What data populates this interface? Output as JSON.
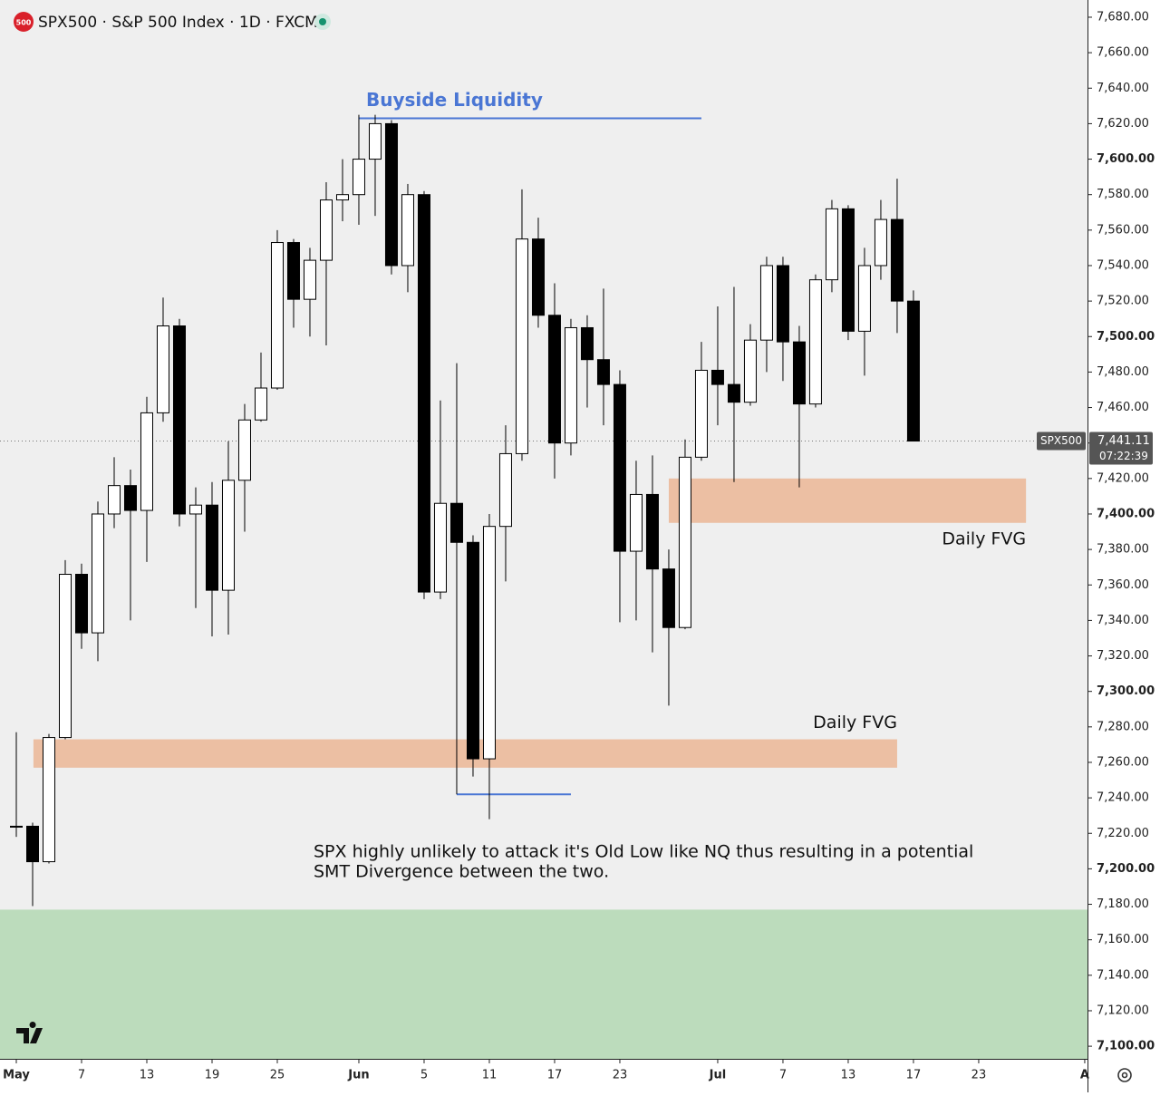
{
  "chart_data": {
    "type": "candlestick",
    "title": "SPX500 · S&P 500 Index · 1D · FXCM",
    "badge": "500",
    "x": [
      0,
      1,
      2,
      3,
      4,
      5,
      6,
      7,
      8,
      9,
      10,
      11,
      12,
      13,
      14,
      15,
      16,
      17,
      18,
      19,
      20,
      21,
      22,
      23,
      24,
      25,
      26,
      27,
      28,
      29,
      30,
      31,
      32,
      33,
      34,
      35,
      36,
      37,
      38,
      39,
      40,
      41,
      42,
      43,
      44,
      45,
      46,
      47,
      48,
      49,
      50,
      51,
      52,
      53,
      54,
      55
    ],
    "open": [
      7224,
      7224,
      7204,
      7274,
      7366,
      7333,
      7400,
      7416,
      7402,
      7457,
      7506,
      7400,
      7405,
      7357,
      7419,
      7453,
      7471,
      7553,
      7521,
      7543,
      7577,
      7580,
      7600,
      7620,
      7540,
      7580,
      7356,
      7406,
      7384,
      7262,
      7393,
      7434,
      7555,
      7512,
      7440,
      7505,
      7487,
      7473,
      7379,
      7411,
      7369,
      7336,
      7432,
      7481,
      7473,
      7463,
      7498,
      7540,
      7497,
      7462,
      7532,
      7572,
      7503,
      7540,
      7566,
      7520
    ],
    "high": [
      7277,
      7226,
      7276,
      7374,
      7372,
      7407,
      7432,
      7425,
      7466,
      7522,
      7510,
      7415,
      7418,
      7441,
      7462,
      7491,
      7560,
      7555,
      7550,
      7587,
      7600,
      7625,
      7625,
      7622,
      7586,
      7582,
      7464,
      7485,
      7388,
      7400,
      7450,
      7583,
      7567,
      7530,
      7510,
      7512,
      7527,
      7481,
      7430,
      7433,
      7380,
      7442,
      7497,
      7517,
      7528,
      7507,
      7545,
      7545,
      7506,
      7535,
      7577,
      7574,
      7550,
      7577,
      7589,
      7526
    ],
    "low": [
      7218,
      7179,
      7203,
      7273,
      7324,
      7317,
      7392,
      7340,
      7373,
      7452,
      7393,
      7347,
      7331,
      7332,
      7390,
      7452,
      7470,
      7505,
      7500,
      7495,
      7565,
      7563,
      7568,
      7535,
      7525,
      7352,
      7352,
      7242,
      7252,
      7228,
      7362,
      7430,
      7505,
      7420,
      7433,
      7460,
      7450,
      7339,
      7340,
      7322,
      7292,
      7335,
      7430,
      7450,
      7418,
      7461,
      7480,
      7475,
      7415,
      7460,
      7525,
      7498,
      7478,
      7532,
      7502,
      7441
    ],
    "close": [
      7224,
      7204,
      7274,
      7366,
      7333,
      7400,
      7416,
      7402,
      7457,
      7506,
      7400,
      7405,
      7357,
      7419,
      7453,
      7471,
      7553,
      7521,
      7543,
      7577,
      7580,
      7600,
      7620,
      7540,
      7580,
      7356,
      7406,
      7384,
      7262,
      7393,
      7434,
      7555,
      7512,
      7440,
      7505,
      7487,
      7473,
      7379,
      7411,
      7369,
      7336,
      7432,
      7481,
      7473,
      7463,
      7498,
      7540,
      7497,
      7462,
      7532,
      7572,
      7503,
      7540,
      7566,
      7520,
      7441.11
    ],
    "up_color": "#ffffff",
    "down_color": "#000000",
    "xlim": [
      -1,
      65.67
    ],
    "xticks": [
      {
        "value": 0,
        "label": "May"
      },
      {
        "value": 4,
        "label": "7"
      },
      {
        "value": 8,
        "label": "13"
      },
      {
        "value": 12,
        "label": "19"
      },
      {
        "value": 16,
        "label": "25"
      },
      {
        "value": 21,
        "label": "Jun"
      },
      {
        "value": 25,
        "label": "5"
      },
      {
        "value": 29,
        "label": "11"
      },
      {
        "value": 33,
        "label": "17"
      },
      {
        "value": 37,
        "label": "23"
      },
      {
        "value": 43,
        "label": "Jul"
      },
      {
        "value": 47,
        "label": "7"
      },
      {
        "value": 51,
        "label": "13"
      },
      {
        "value": 55,
        "label": "17"
      },
      {
        "value": 59,
        "label": "23"
      },
      {
        "value": 65.5,
        "label": "A"
      }
    ],
    "ylim": [
      7092.9,
      7689.7
    ],
    "yticks": [
      {
        "value": 7100,
        "label": "7,100.00"
      },
      {
        "value": 7120,
        "label": "7,120.00"
      },
      {
        "value": 7140,
        "label": "7,140.00"
      },
      {
        "value": 7160,
        "label": "7,160.00"
      },
      {
        "value": 7180,
        "label": "7,180.00"
      },
      {
        "value": 7200,
        "label": "7,200.00"
      },
      {
        "value": 7220,
        "label": "7,220.00"
      },
      {
        "value": 7240,
        "label": "7,240.00"
      },
      {
        "value": 7260,
        "label": "7,260.00"
      },
      {
        "value": 7280,
        "label": "7,280.00"
      },
      {
        "value": 7300,
        "label": "7,300.00"
      },
      {
        "value": 7320,
        "label": "7,320.00"
      },
      {
        "value": 7340,
        "label": "7,340.00"
      },
      {
        "value": 7360,
        "label": "7,360.00"
      },
      {
        "value": 7380,
        "label": "7,380.00"
      },
      {
        "value": 7400,
        "label": "7,400.00"
      },
      {
        "value": 7420,
        "label": "7,420.00"
      },
      {
        "value": 7440,
        "label": "7,440.00"
      },
      {
        "value": 7460,
        "label": "7,460.00"
      },
      {
        "value": 7480,
        "label": "7,480.00"
      },
      {
        "value": 7500,
        "label": "7,500.00"
      },
      {
        "value": 7520,
        "label": "7,520.00"
      },
      {
        "value": 7540,
        "label": "7,540.00"
      },
      {
        "value": 7560,
        "label": "7,560.00"
      },
      {
        "value": 7580,
        "label": "7,580.00"
      },
      {
        "value": 7600,
        "label": "7,600.00"
      },
      {
        "value": 7620,
        "label": "7,620.00"
      },
      {
        "value": 7640,
        "label": "7,640.00"
      },
      {
        "value": 7660,
        "label": "7,660.00"
      },
      {
        "value": 7680,
        "label": "7,680.00"
      }
    ],
    "zones": [
      {
        "x": [
          -1,
          65.67
        ],
        "y": [
          7092.9,
          7177
        ],
        "color": "#bcdcbc"
      },
      {
        "label": "Daily FVG",
        "x": [
          1.05,
          54
        ],
        "y": [
          7257,
          7273
        ],
        "color": "#ecbfa3"
      },
      {
        "label": "Daily FVG",
        "x": [
          40,
          61.9
        ],
        "y": [
          7395,
          7420
        ],
        "color": "#ecbfa3"
      }
    ],
    "levels": [
      {
        "label": "Buyside Liquidity",
        "x": [
          21,
          42
        ],
        "y": 7623,
        "color": "#4a76d4"
      },
      {
        "x": [
          27,
          34
        ],
        "y": 7242,
        "color": "#4a76d4"
      }
    ],
    "annotation": [
      "SPX highly unlikely to attack it's Old Low like NQ thus resulting in a potential",
      "SMT Divergence between the two."
    ],
    "last_price": {
      "symbol": "SPX500",
      "value": 7441.11,
      "label": "7,441.11",
      "countdown": "07:22:39"
    }
  }
}
